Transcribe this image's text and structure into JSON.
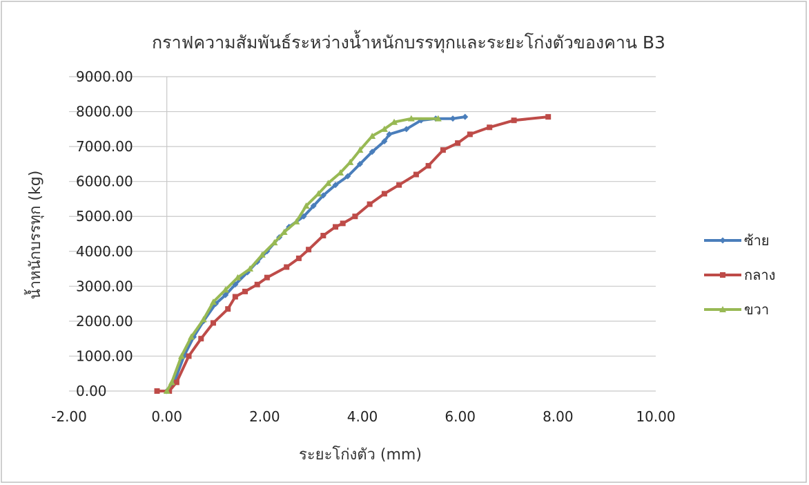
{
  "chart_data": {
    "type": "scatter",
    "title": "กราฟความสัมพันธ์ระหว่างน้ำหนักบรรทุกและระยะโก่งตัวของคาน B3",
    "xlabel": "ระยะโก่งตัว (mm)",
    "ylabel": "น้ำหนักบรรทุก (kg)",
    "xlim": [
      -2,
      10
    ],
    "ylim": [
      0,
      9000
    ],
    "x_ticks": [
      "-2.00",
      "0.00",
      "2.00",
      "4.00",
      "6.00",
      "8.00",
      "10.00"
    ],
    "y_ticks": [
      "0.00",
      "1000.00",
      "2000.00",
      "3000.00",
      "4000.00",
      "5000.00",
      "6000.00",
      "7000.00",
      "8000.00",
      "9000.00"
    ],
    "grid": true,
    "legend_position": "right",
    "series": [
      {
        "name": "ซ้าย",
        "color": "#4a7ebb",
        "marker": "diamond",
        "points": [
          [
            0,
            0
          ],
          [
            0.15,
            250
          ],
          [
            0.35,
            1000
          ],
          [
            0.55,
            1550
          ],
          [
            0.75,
            2000
          ],
          [
            1.0,
            2500
          ],
          [
            1.2,
            2750
          ],
          [
            1.4,
            3050
          ],
          [
            1.65,
            3400
          ],
          [
            1.85,
            3700
          ],
          [
            2.05,
            4000
          ],
          [
            2.3,
            4400
          ],
          [
            2.5,
            4700
          ],
          [
            2.8,
            5000
          ],
          [
            3.0,
            5300
          ],
          [
            3.2,
            5600
          ],
          [
            3.45,
            5900
          ],
          [
            3.7,
            6150
          ],
          [
            3.95,
            6500
          ],
          [
            4.2,
            6850
          ],
          [
            4.45,
            7150
          ],
          [
            4.55,
            7350
          ],
          [
            4.9,
            7500
          ],
          [
            5.2,
            7750
          ],
          [
            5.5,
            7800
          ],
          [
            5.85,
            7800
          ],
          [
            6.1,
            7850
          ]
        ]
      },
      {
        "name": "กลาง",
        "color": "#be4b48",
        "marker": "square",
        "points": [
          [
            -0.2,
            0
          ],
          [
            0.05,
            0
          ],
          [
            0.2,
            250
          ],
          [
            0.45,
            1000
          ],
          [
            0.7,
            1500
          ],
          [
            0.95,
            1950
          ],
          [
            1.25,
            2350
          ],
          [
            1.4,
            2700
          ],
          [
            1.6,
            2850
          ],
          [
            1.85,
            3050
          ],
          [
            2.05,
            3250
          ],
          [
            2.45,
            3550
          ],
          [
            2.7,
            3800
          ],
          [
            2.9,
            4050
          ],
          [
            3.2,
            4450
          ],
          [
            3.45,
            4700
          ],
          [
            3.6,
            4800
          ],
          [
            3.85,
            5000
          ],
          [
            4.15,
            5350
          ],
          [
            4.45,
            5650
          ],
          [
            4.75,
            5900
          ],
          [
            5.1,
            6200
          ],
          [
            5.35,
            6450
          ],
          [
            5.65,
            6900
          ],
          [
            5.95,
            7100
          ],
          [
            6.2,
            7350
          ],
          [
            6.6,
            7550
          ],
          [
            7.1,
            7750
          ],
          [
            7.8,
            7850
          ]
        ]
      },
      {
        "name": "ขวา",
        "color": "#98b954",
        "marker": "triangle",
        "points": [
          [
            0,
            0
          ],
          [
            0.1,
            250
          ],
          [
            0.3,
            1000
          ],
          [
            0.5,
            1550
          ],
          [
            0.75,
            2050
          ],
          [
            0.95,
            2550
          ],
          [
            1.2,
            2900
          ],
          [
            1.45,
            3250
          ],
          [
            1.7,
            3500
          ],
          [
            1.95,
            3900
          ],
          [
            2.2,
            4250
          ],
          [
            2.4,
            4550
          ],
          [
            2.65,
            4850
          ],
          [
            2.85,
            5300
          ],
          [
            3.1,
            5650
          ],
          [
            3.3,
            5950
          ],
          [
            3.55,
            6250
          ],
          [
            3.75,
            6550
          ],
          [
            3.95,
            6900
          ],
          [
            4.2,
            7300
          ],
          [
            4.45,
            7500
          ],
          [
            4.65,
            7700
          ],
          [
            5.0,
            7800
          ],
          [
            5.55,
            7800
          ]
        ]
      }
    ]
  }
}
